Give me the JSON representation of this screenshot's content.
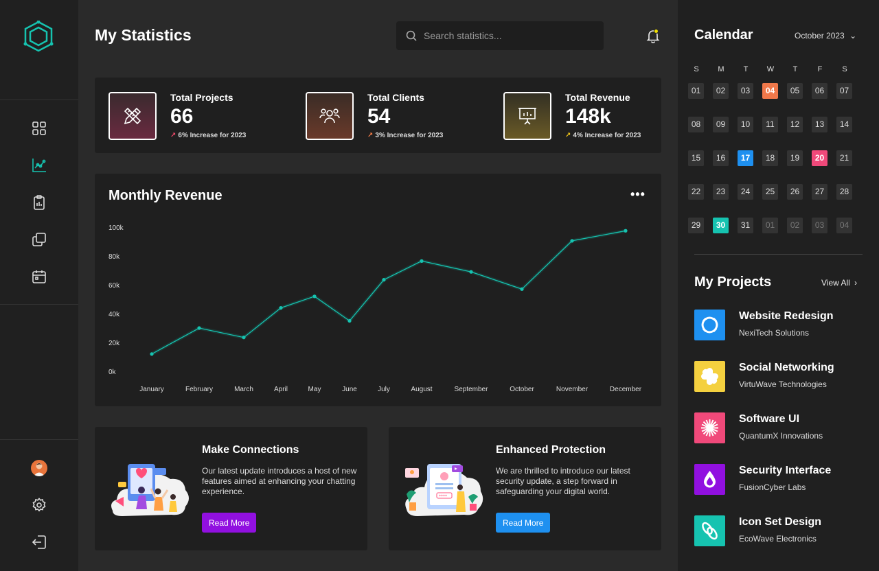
{
  "header": {
    "title": "My Statistics",
    "search_placeholder": "Search statistics..."
  },
  "stats": [
    {
      "label": "Total Projects",
      "value": "66",
      "note": "6% Increase for 2023",
      "color": "#f0496a"
    },
    {
      "label": "Total Clients",
      "value": "54",
      "note": "3% Increase for 2023",
      "color": "#f07a45"
    },
    {
      "label": "Total Revenue",
      "value": "148k",
      "note": "4% Increase for 2023",
      "color": "#f0c419"
    }
  ],
  "revenue_chart": {
    "title": "Monthly Revenue",
    "more": "•••"
  },
  "chart_data": {
    "type": "line",
    "title": "Monthly Revenue",
    "categories": [
      "January",
      "February",
      "March",
      "April",
      "May",
      "June",
      "July",
      "August",
      "September",
      "October",
      "November",
      "December"
    ],
    "values": [
      12000,
      30000,
      23500,
      44000,
      52000,
      35000,
      63500,
      76500,
      69000,
      57000,
      90500,
      97500
    ],
    "ylim": [
      0,
      100000
    ],
    "yticks": [
      "0k",
      "20k",
      "40k",
      "60k",
      "80k",
      "100k"
    ],
    "line_color": "#16c3b0",
    "grid": false
  },
  "promos": [
    {
      "title": "Make Connections",
      "text": "Our latest update introduces a host of new features aimed at enhancing your chatting experience.",
      "button": "Read More",
      "button_color": "#9110e0"
    },
    {
      "title": "Enhanced Protection",
      "text": "We are thrilled to introduce our latest security update, a step forward in safeguarding your digital world.",
      "button": "Read More",
      "button_color": "#1e90f0"
    }
  ],
  "calendar": {
    "title": "Calendar",
    "month": "October 2023",
    "weekdays": [
      "S",
      "M",
      "T",
      "W",
      "T",
      "F",
      "S"
    ],
    "days": [
      "01",
      "02",
      "03",
      "04",
      "05",
      "06",
      "07",
      "08",
      "09",
      "10",
      "11",
      "12",
      "13",
      "14",
      "15",
      "16",
      "17",
      "18",
      "19",
      "20",
      "21",
      "22",
      "23",
      "24",
      "25",
      "26",
      "27",
      "28",
      "29",
      "30",
      "31",
      "01",
      "02",
      "03",
      "04"
    ],
    "highlights": {
      "3": "#f0784a",
      "16": "#1e90f0",
      "19": "#f0497a",
      "29": "#16c3b0"
    },
    "muted_from": 31
  },
  "projects": {
    "title": "My Projects",
    "view_all": "View All",
    "items": [
      {
        "name": "Website Redesign",
        "company": "NexiTech Solutions",
        "color": "#1e90f0"
      },
      {
        "name": "Social Networking",
        "company": "VirtuWave Technologies",
        "color": "#f4d03f"
      },
      {
        "name": "Software UI",
        "company": "QuantumX Innovations",
        "color": "#f0497a"
      },
      {
        "name": "Security Interface",
        "company": "FusionCyber Labs",
        "color": "#9110e0"
      },
      {
        "name": "Icon Set Design",
        "company": "EcoWave Electronics",
        "color": "#16c3b0"
      }
    ]
  }
}
